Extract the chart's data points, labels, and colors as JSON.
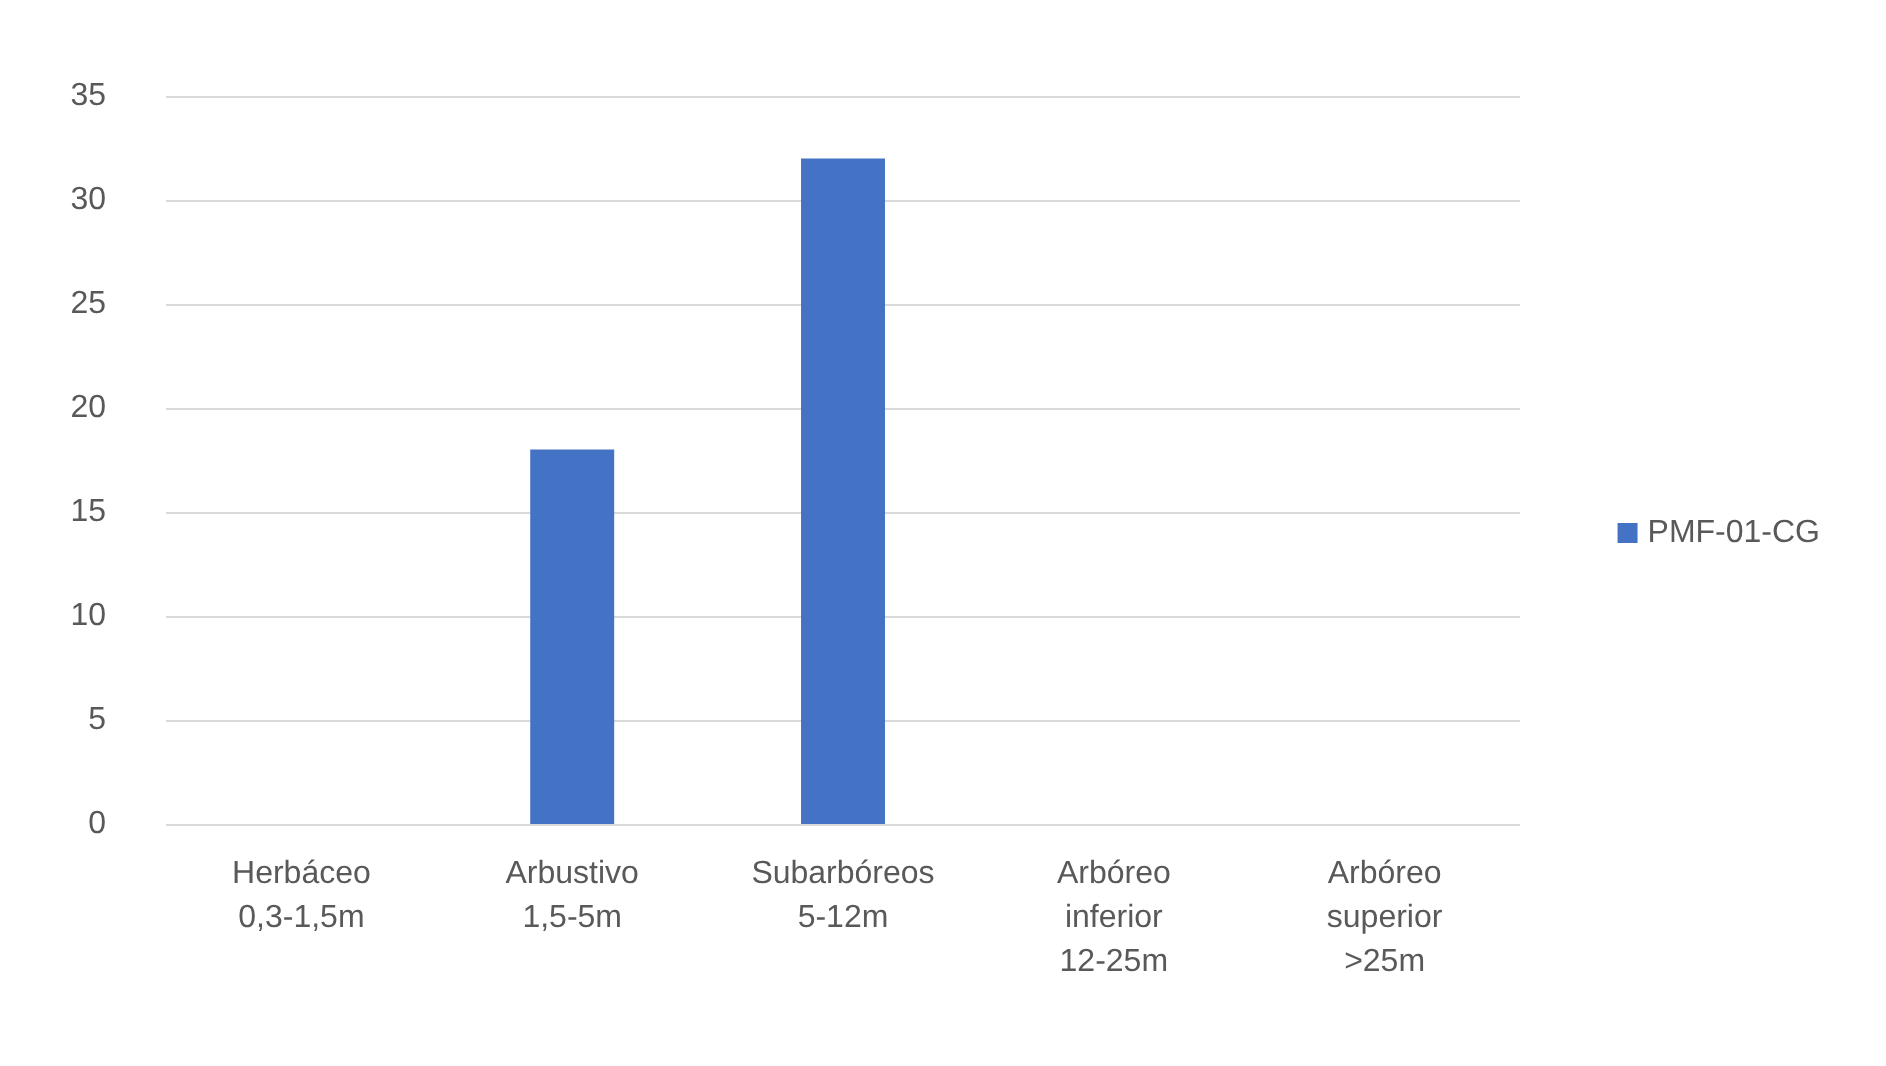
{
  "chart_data": {
    "type": "bar",
    "categories": [
      "Herbáceo 0,3-1,5m",
      "Arbustivo 1,5-5m",
      "Subarbóreos 5-12m",
      "Arbóreo inferior 12-25m",
      "Arbóreo superior >25m"
    ],
    "series": [
      {
        "name": "PMF-01-CG",
        "color": "#4472c4",
        "values": [
          0,
          18,
          32,
          0,
          0
        ]
      }
    ],
    "ylim": [
      0,
      35
    ],
    "yticks": [
      0,
      5,
      10,
      15,
      20,
      25,
      30,
      35
    ],
    "grid": "y",
    "legend": "right"
  }
}
